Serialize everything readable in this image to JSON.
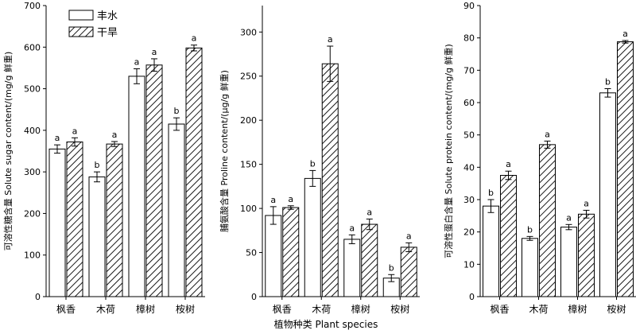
{
  "figure": {
    "legend": [
      {
        "label": "丰水",
        "pattern": "solid-white"
      },
      {
        "label": "干旱",
        "pattern": "hatched"
      }
    ],
    "shared_xlabel": "植物种类 Plant species"
  },
  "chart_data": [
    {
      "type": "bar",
      "categories": [
        "枫香",
        "木荷",
        "樟树",
        "桉树"
      ],
      "ylabel": "可溶性糖含量  Solute sugar content/(mg/g 鲜重)",
      "ylim": [
        0,
        700
      ],
      "yticks": [
        0,
        100,
        200,
        300,
        400,
        500,
        600,
        700
      ],
      "series": [
        {
          "name": "丰水",
          "values": [
            355,
            288,
            530,
            415
          ],
          "errors": [
            10,
            12,
            18,
            15
          ],
          "letters": [
            "a",
            "b",
            "a",
            "b"
          ]
        },
        {
          "name": "干旱",
          "values": [
            372,
            367,
            557,
            598
          ],
          "errors": [
            10,
            6,
            15,
            7
          ],
          "letters": [
            "a",
            "a",
            "a",
            "a"
          ]
        }
      ],
      "legend_position": "top-left"
    },
    {
      "type": "bar",
      "categories": [
        "枫香",
        "木荷",
        "樟树",
        "桉树"
      ],
      "ylabel": "脯氨酸含量  Proline content/(μg/g 鲜重)",
      "ylim": [
        0,
        330
      ],
      "yticks": [
        0,
        50,
        100,
        150,
        200,
        250,
        300
      ],
      "series": [
        {
          "name": "丰水",
          "values": [
            92,
            134,
            65,
            21
          ],
          "errors": [
            10,
            9,
            5,
            4
          ],
          "letters": [
            "a",
            "b",
            "a",
            "b"
          ]
        },
        {
          "name": "干旱",
          "values": [
            101,
            264,
            82,
            56
          ],
          "errors": [
            2,
            20,
            6,
            5
          ],
          "letters": [
            "a",
            "a",
            "a",
            "a"
          ]
        }
      ]
    },
    {
      "type": "bar",
      "categories": [
        "枫香",
        "木荷",
        "樟树",
        "桉树"
      ],
      "ylabel": "可溶性蛋白含量  Solute protein content/(mg/g 鲜重)",
      "ylim": [
        0,
        90
      ],
      "yticks": [
        0,
        10,
        20,
        30,
        40,
        50,
        60,
        70,
        80,
        90
      ],
      "series": [
        {
          "name": "丰水",
          "values": [
            28,
            18,
            21.5,
            63
          ],
          "errors": [
            2,
            0.6,
            0.8,
            1.3
          ],
          "letters": [
            "b",
            "b",
            "a",
            "b"
          ]
        },
        {
          "name": "干旱",
          "values": [
            37.5,
            47,
            25.5,
            78.8
          ],
          "errors": [
            1.3,
            1.1,
            1.2,
            0.4
          ],
          "letters": [
            "a",
            "a",
            "a",
            "a"
          ]
        }
      ]
    }
  ]
}
